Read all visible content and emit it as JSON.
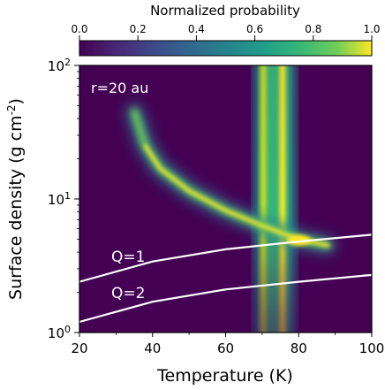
{
  "chart_data": {
    "type": "heatmap",
    "colorbar": {
      "title": "Normalized probability",
      "ticks": [
        "0.0",
        "0.2",
        "0.4",
        "0.6",
        "0.8",
        "1.0"
      ],
      "range": [
        0,
        1
      ],
      "colormap": "viridis"
    },
    "xlabel": "Temperature (K)",
    "ylabel": "Surface density (g cm",
    "ylabel_sup": "-2",
    "ylabel_close": ")",
    "xlim": [
      20,
      100
    ],
    "ylim": [
      1,
      100
    ],
    "yscale": "log",
    "xticks": [
      "20",
      "40",
      "60",
      "80",
      "100"
    ],
    "yticks": [
      {
        "base": "10",
        "exp": "0",
        "value": 1
      },
      {
        "base": "10",
        "exp": "1",
        "value": 10
      },
      {
        "base": "10",
        "exp": "2",
        "value": 100
      }
    ],
    "annotation": "r=20 au",
    "curves": [
      {
        "label": "Q=1",
        "points": [
          [
            20,
            2.4
          ],
          [
            40,
            3.4
          ],
          [
            60,
            4.2
          ],
          [
            80,
            4.8
          ],
          [
            100,
            5.4
          ]
        ],
        "color": "#ffffff"
      },
      {
        "label": "Q=2",
        "points": [
          [
            20,
            1.2
          ],
          [
            40,
            1.7
          ],
          [
            60,
            2.1
          ],
          [
            80,
            2.4
          ],
          [
            100,
            2.7
          ]
        ],
        "color": "#ffffff"
      }
    ],
    "ridges": {
      "diagonal": [
        [
          35,
          45
        ],
        [
          38,
          25
        ],
        [
          42,
          17
        ],
        [
          50,
          11.5
        ],
        [
          60,
          8.2
        ],
        [
          70,
          6.3
        ],
        [
          80,
          5.0
        ],
        [
          88,
          4.5
        ]
      ],
      "vertical_band_x": [
        69,
        74,
        78
      ]
    }
  }
}
